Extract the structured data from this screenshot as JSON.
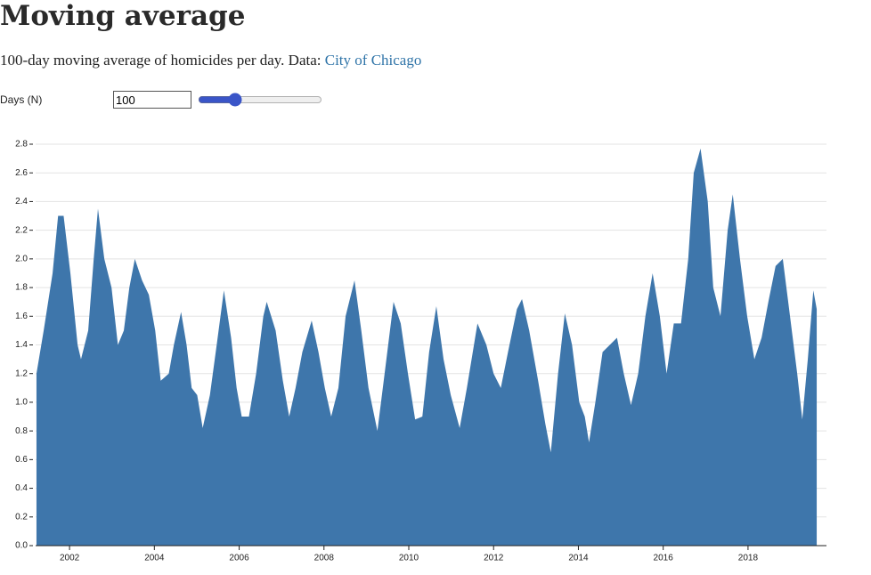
{
  "title": "Moving average",
  "subtitle": {
    "text": "100-day moving average of homicides per day. Data: ",
    "link": "City of Chicago"
  },
  "control": {
    "label": "Days (N)",
    "value": 100,
    "slider_range": [
      1,
      365
    ]
  },
  "chart_data": {
    "type": "area",
    "color": "#3e76ab",
    "grid": true,
    "xlim": [
      2001.2,
      2019.85
    ],
    "xticks": [
      2002,
      2004,
      2006,
      2008,
      2010,
      2012,
      2014,
      2016,
      2018
    ],
    "ylim": [
      0,
      2.8
    ],
    "yticks": [
      {
        "value": 0,
        "label": "0.0"
      },
      0.2,
      0.4,
      0.6,
      0.8,
      {
        "value": 1,
        "label": "1.0"
      },
      1.2,
      1.4,
      1.6,
      1.8,
      {
        "value": 2,
        "label": "2.0"
      },
      2.2,
      2.4,
      2.6,
      2.8
    ],
    "x": [
      2001.22,
      2001.39,
      2001.6,
      2001.73,
      2001.86,
      2002.02,
      2002.19,
      2002.27,
      2002.44,
      2002.57,
      2002.67,
      2002.82,
      2002.99,
      2003.14,
      2003.28,
      2003.41,
      2003.54,
      2003.71,
      2003.87,
      2004.02,
      2004.15,
      2004.34,
      2004.46,
      2004.63,
      2004.76,
      2004.88,
      2005.01,
      2005.14,
      2005.31,
      2005.47,
      2005.64,
      2005.81,
      2005.94,
      2006.06,
      2006.23,
      2006.4,
      2006.57,
      2006.65,
      2006.86,
      2007.03,
      2007.18,
      2007.33,
      2007.49,
      2007.71,
      2007.87,
      2008.02,
      2008.17,
      2008.34,
      2008.51,
      2008.72,
      2008.88,
      2009.05,
      2009.26,
      2009.43,
      2009.64,
      2009.81,
      2009.98,
      2010.15,
      2010.32,
      2010.48,
      2010.65,
      2010.82,
      2010.99,
      2011.2,
      2011.37,
      2011.62,
      2011.83,
      2012.0,
      2012.17,
      2012.34,
      2012.55,
      2012.67,
      2012.84,
      2013.05,
      2013.22,
      2013.35,
      2013.52,
      2013.68,
      2013.85,
      2014.02,
      2014.15,
      2014.25,
      2014.4,
      2014.57,
      2014.74,
      2014.91,
      2015.07,
      2015.24,
      2015.41,
      2015.58,
      2015.75,
      2015.92,
      2016.08,
      2016.25,
      2016.42,
      2016.59,
      2016.72,
      2016.88,
      2017.05,
      2017.18,
      2017.35,
      2017.52,
      2017.64,
      2017.81,
      2017.98,
      2018.15,
      2018.32,
      2018.48,
      2018.65,
      2018.82,
      2018.99,
      2019.16,
      2019.28,
      2019.41,
      2019.54,
      2019.62
    ],
    "values": [
      1.2,
      1.5,
      1.9,
      2.3,
      2.3,
      1.9,
      1.4,
      1.3,
      1.5,
      2.0,
      2.35,
      2.0,
      1.8,
      1.4,
      1.5,
      1.8,
      2.0,
      1.85,
      1.75,
      1.5,
      1.15,
      1.2,
      1.4,
      1.63,
      1.4,
      1.1,
      1.05,
      0.82,
      1.05,
      1.4,
      1.78,
      1.45,
      1.1,
      0.9,
      0.9,
      1.2,
      1.6,
      1.7,
      1.5,
      1.15,
      0.9,
      1.1,
      1.35,
      1.57,
      1.35,
      1.1,
      0.9,
      1.1,
      1.6,
      1.85,
      1.5,
      1.1,
      0.8,
      1.2,
      1.7,
      1.55,
      1.2,
      0.88,
      0.9,
      1.35,
      1.67,
      1.3,
      1.05,
      0.82,
      1.1,
      1.55,
      1.4,
      1.2,
      1.1,
      1.35,
      1.65,
      1.72,
      1.5,
      1.15,
      0.85,
      0.65,
      1.2,
      1.62,
      1.4,
      1.0,
      0.9,
      0.72,
      1.0,
      1.35,
      1.4,
      1.45,
      1.2,
      0.98,
      1.2,
      1.6,
      1.9,
      1.6,
      1.2,
      1.55,
      1.55,
      2.0,
      2.6,
      2.77,
      2.4,
      1.8,
      1.6,
      2.2,
      2.45,
      2.0,
      1.6,
      1.3,
      1.45,
      1.7,
      1.95,
      2.0,
      1.6,
      1.2,
      0.88,
      1.3,
      1.78,
      1.65
    ]
  }
}
